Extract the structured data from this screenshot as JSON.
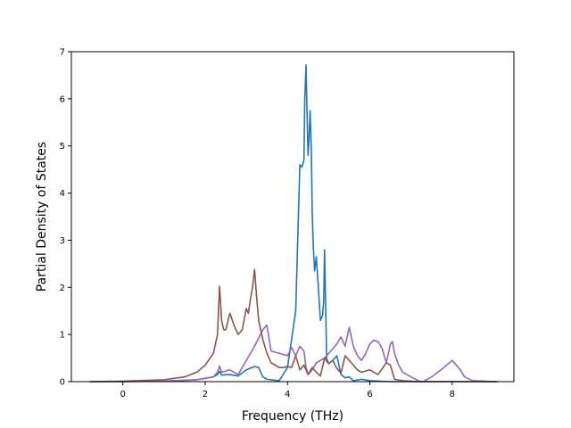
{
  "chart_data": {
    "type": "line",
    "title": "",
    "xlabel": "Frequency (THz)",
    "ylabel": "Partial Density of States",
    "xlim": [
      -1.25,
      9.5
    ],
    "ylim": [
      0,
      7
    ],
    "xticks": [
      0,
      2,
      4,
      6,
      8
    ],
    "yticks": [
      0,
      1,
      2,
      3,
      4,
      5,
      6,
      7
    ],
    "grid": false,
    "legend": "none",
    "series": [
      {
        "color": "#1f77b4",
        "x": [
          -0.8,
          0,
          1,
          1.8,
          2.2,
          2.3,
          2.35,
          2.4,
          2.6,
          2.8,
          3.0,
          3.2,
          3.3,
          3.4,
          3.5,
          3.8,
          4.0,
          4.2,
          4.3,
          4.35,
          4.4,
          4.42,
          4.45,
          4.48,
          4.5,
          4.52,
          4.55,
          4.58,
          4.6,
          4.63,
          4.66,
          4.7,
          4.75,
          4.8,
          4.85,
          4.88,
          4.9,
          4.93,
          4.95,
          5.0,
          5.1,
          5.2,
          5.3,
          5.4,
          5.5,
          5.6,
          5.8,
          6.0,
          6.5,
          7.0,
          8.0,
          9.1
        ],
        "y": [
          0,
          0,
          0.01,
          0.04,
          0.1,
          0.15,
          0.22,
          0.14,
          0.15,
          0.12,
          0.25,
          0.32,
          0.3,
          0.1,
          0.05,
          0.02,
          0.3,
          1.5,
          4.6,
          4.55,
          4.7,
          6.0,
          6.72,
          5.5,
          4.8,
          5.1,
          5.75,
          4.9,
          3.6,
          2.8,
          2.35,
          2.65,
          2.0,
          1.3,
          1.4,
          1.7,
          2.8,
          1.5,
          0.5,
          0.38,
          0.45,
          0.55,
          0.15,
          0.08,
          0.1,
          0.02,
          0.05,
          0.02,
          0,
          0,
          0,
          0
        ]
      },
      {
        "color": "#9467bd",
        "x": [
          -0.8,
          0,
          1,
          1.8,
          2.2,
          2.3,
          2.35,
          2.4,
          2.6,
          2.8,
          3.0,
          3.2,
          3.4,
          3.5,
          3.6,
          3.8,
          4.0,
          4.1,
          4.2,
          4.3,
          4.4,
          4.45,
          4.5,
          4.6,
          4.7,
          4.8,
          4.9,
          5.0,
          5.1,
          5.2,
          5.3,
          5.4,
          5.5,
          5.6,
          5.7,
          5.8,
          5.9,
          6.0,
          6.1,
          6.2,
          6.3,
          6.4,
          6.5,
          6.55,
          6.6,
          6.7,
          6.8,
          7.0,
          7.2,
          7.3,
          7.5,
          7.8,
          8.0,
          8.2,
          8.3,
          8.5,
          9.1
        ],
        "y": [
          0,
          0,
          0.01,
          0.04,
          0.1,
          0.2,
          0.33,
          0.2,
          0.25,
          0.15,
          0.45,
          0.75,
          1.1,
          1.2,
          0.65,
          0.6,
          0.55,
          0.72,
          0.55,
          0.75,
          0.65,
          0.3,
          0.15,
          0.25,
          0.4,
          0.45,
          0.5,
          0.6,
          0.7,
          0.8,
          0.95,
          0.75,
          1.15,
          0.75,
          0.55,
          0.45,
          0.6,
          0.8,
          0.88,
          0.85,
          0.7,
          0.4,
          0.8,
          0.85,
          0.6,
          0.35,
          0.2,
          0.1,
          0.01,
          0.0,
          0.1,
          0.3,
          0.45,
          0.25,
          0.1,
          0.02,
          0
        ]
      },
      {
        "color": "#8c564b",
        "x": [
          -0.8,
          0,
          1,
          1.5,
          1.8,
          2.0,
          2.2,
          2.3,
          2.35,
          2.4,
          2.45,
          2.5,
          2.6,
          2.7,
          2.8,
          2.9,
          3.0,
          3.05,
          3.1,
          3.15,
          3.2,
          3.25,
          3.3,
          3.4,
          3.5,
          3.6,
          3.7,
          3.8,
          3.9,
          4.0,
          4.1,
          4.2,
          4.3,
          4.4,
          4.5,
          4.6,
          4.7,
          4.8,
          4.9,
          5.0,
          5.1,
          5.2,
          5.3,
          5.4,
          5.5,
          5.6,
          5.7,
          5.8,
          6.0,
          6.2,
          6.4,
          6.5,
          6.6,
          6.8,
          7.0,
          7.2,
          7.4,
          8.0,
          9.1
        ],
        "y": [
          0,
          0.01,
          0.04,
          0.1,
          0.2,
          0.35,
          0.6,
          1.0,
          2.02,
          1.3,
          1.1,
          1.1,
          1.45,
          1.2,
          1.0,
          1.1,
          1.55,
          1.45,
          1.75,
          2.0,
          2.38,
          1.8,
          1.3,
          0.9,
          0.6,
          0.4,
          0.35,
          0.3,
          0.3,
          0.32,
          0.3,
          0.55,
          0.25,
          0.35,
          0.15,
          0.3,
          0.2,
          0.12,
          0.5,
          0.38,
          0.45,
          0.28,
          0.18,
          0.55,
          0.45,
          0.35,
          0.25,
          0.2,
          0.25,
          0.15,
          0.4,
          0.35,
          0.05,
          0.02,
          0.01,
          0.0,
          0.0,
          0.0,
          0
        ]
      }
    ]
  }
}
